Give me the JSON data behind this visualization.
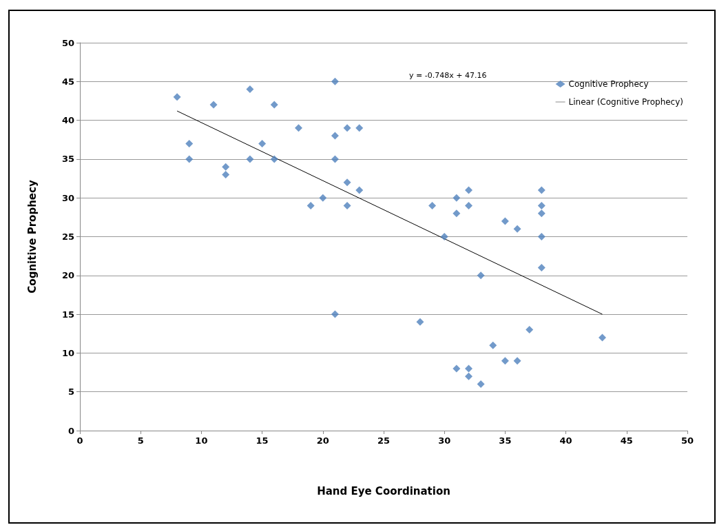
{
  "chart_data": {
    "type": "scatter",
    "xlabel": "Hand Eye Coordination",
    "ylabel": "Cognitive Prophecy",
    "annotations": [
      "y = -0.748x + 47.16"
    ],
    "series": [
      {
        "name": "Cognitive Prophecy",
        "color": "#4f81bd",
        "marker": "diamond",
        "x": [
          8,
          9,
          9,
          11,
          12,
          12,
          14,
          14,
          15,
          16,
          16,
          18,
          19,
          20,
          21,
          21,
          21,
          21,
          22,
          22,
          22,
          23,
          23,
          28,
          29,
          30,
          31,
          31,
          31,
          32,
          32,
          32,
          32,
          33,
          33,
          34,
          35,
          35,
          36,
          36,
          37,
          38,
          38,
          38,
          38,
          38,
          43
        ],
        "values": [
          43,
          37,
          35,
          42,
          34,
          33,
          44,
          35,
          37,
          42,
          35,
          39,
          29,
          30,
          45,
          38,
          35,
          15,
          39,
          32,
          29,
          39,
          31,
          14,
          29,
          25,
          30,
          28,
          8,
          31,
          29,
          8,
          7,
          20,
          6,
          11,
          27,
          9,
          26,
          9,
          13,
          31,
          29,
          28,
          25,
          21,
          12
        ]
      },
      {
        "name": "Linear (Cognitive Prophecy)",
        "type": "line",
        "color": "#000000",
        "marker": "none",
        "line_style": "solid",
        "x": [
          8,
          43
        ],
        "values": [
          41.2,
          15.0
        ]
      }
    ],
    "xlim": [
      0,
      50
    ],
    "xticks": [
      0,
      5,
      10,
      15,
      20,
      25,
      30,
      35,
      40,
      45,
      50
    ],
    "ylim": [
      0,
      50
    ],
    "yticks": [
      0,
      5,
      10,
      15,
      20,
      25,
      30,
      35,
      40,
      45,
      50
    ],
    "grid": "y",
    "legend": "top right"
  }
}
